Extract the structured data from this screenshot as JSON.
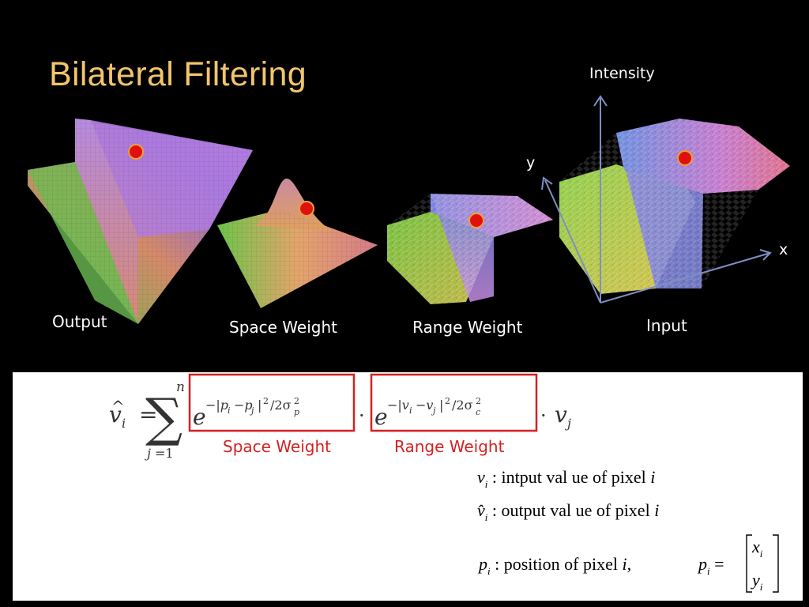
{
  "title": "Bilateral Filtering",
  "figures": {
    "output_label": "Output",
    "space_weight_label": "Space Weight",
    "range_weight_label": "Range Weight",
    "input_label": "Input",
    "axis_intensity": "Intensity",
    "axis_y": "y",
    "axis_x": "x"
  },
  "equation": {
    "box1_label": "Space Weight",
    "box2_label": "Range Weight",
    "def1_sym": "v",
    "def1_sub": "i",
    "def1_text": " : intput val ue of  pixel ",
    "def1_var": "i",
    "def2_sym": "v̂",
    "def2_sub": "i",
    "def2_text": " : output val ue of  pixel ",
    "def2_var": "i",
    "def3_sym": "p",
    "def3_sub": "i",
    "def3_text": " : position of  pixel ",
    "def3_var": "i,",
    "vec_lhs": "p",
    "vec_x": "x",
    "vec_y": "y",
    "vec_sub": "i"
  },
  "colors": {
    "title": "#f2c46d",
    "highlight_box": "#d42020",
    "dot": "#e01010"
  }
}
